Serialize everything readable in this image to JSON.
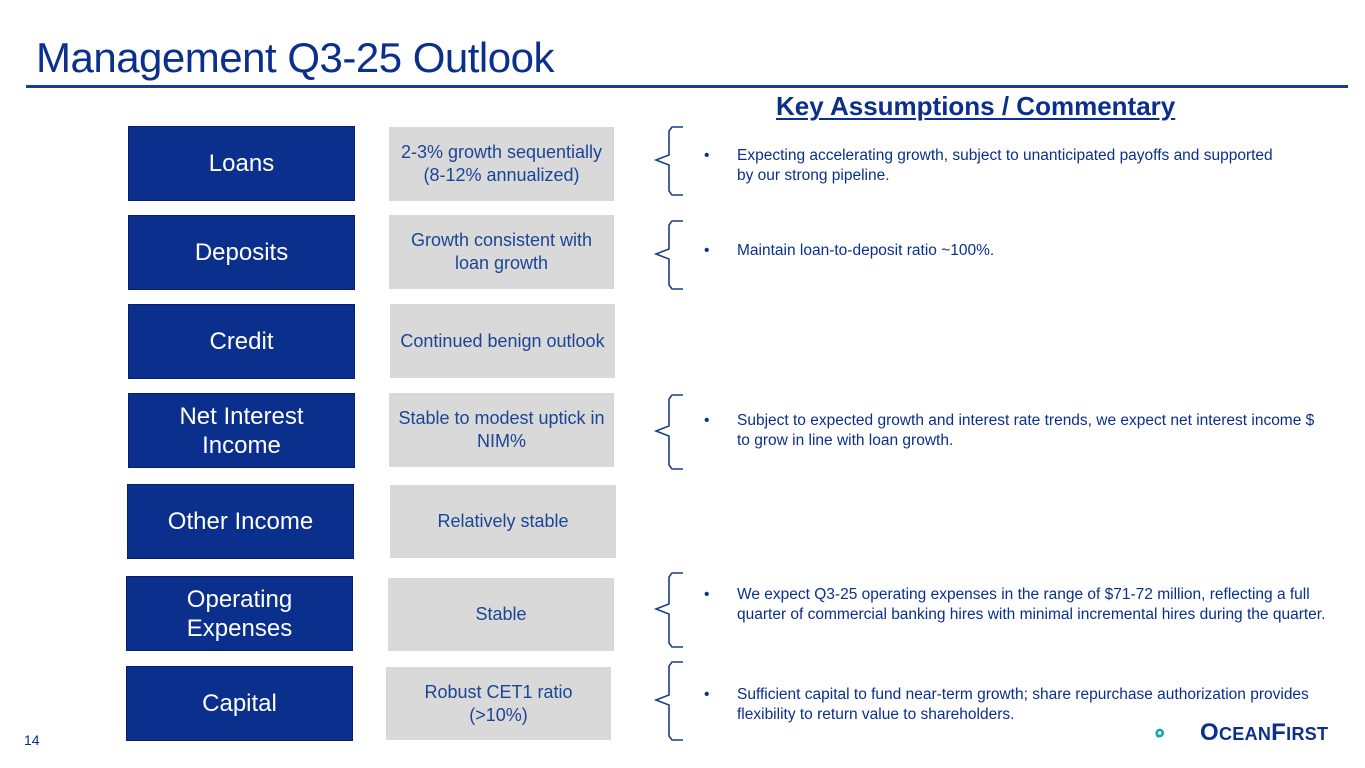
{
  "slide": {
    "title": "Management Q3-25 Outlook",
    "commentary_heading": "Key Assumptions / Commentary",
    "page_number": "14"
  },
  "rows": [
    {
      "category": "Loans",
      "outlook": "2-3% growth sequentially (8-12% annualized)"
    },
    {
      "category": "Deposits",
      "outlook": "Growth consistent with loan growth"
    },
    {
      "category": "Credit",
      "outlook": "Continued benign outlook"
    },
    {
      "category": "Net Interest Income",
      "outlook": "Stable to modest uptick in NIM%"
    },
    {
      "category": "Other Income",
      "outlook": "Relatively stable"
    },
    {
      "category": "Operating Expenses",
      "outlook": "Stable"
    },
    {
      "category": "Capital",
      "outlook": "Robust CET1 ratio (>10%)"
    }
  ],
  "commentary": [
    {
      "bullet": "•",
      "text": "Expecting accelerating growth, subject to unanticipated payoffs and supported by our strong pipeline."
    },
    {
      "bullet": "•",
      "text": "Maintain loan-to-deposit ratio ~100%."
    },
    {
      "bullet": "•",
      "text": "Subject to expected growth and interest rate trends, we expect net interest income $ to grow in line with loan growth."
    },
    {
      "bullet": "•",
      "text": "We expect Q3-25 operating expenses in the range of $71-72 million, reflecting  a full quarter of commercial banking hires with minimal incremental hires during the quarter."
    },
    {
      "bullet": "•",
      "text": "Sufficient capital to fund near-term growth; share repurchase authorization provides flexibility to return value to shareholders."
    }
  ],
  "logo": {
    "initial_1": "O",
    "rest_1": "CEAN",
    "initial_2": "F",
    "rest_2": "IRST",
    "colors": {
      "navy": "#0a2f8c",
      "green": "#1faa4b",
      "teal": "#0fa7b5"
    }
  },
  "colors": {
    "title": "#0a2f8c",
    "category_box": "#0a2f8c",
    "outlook_box": "#d9d9d9",
    "outlook_text": "#1a4595"
  }
}
